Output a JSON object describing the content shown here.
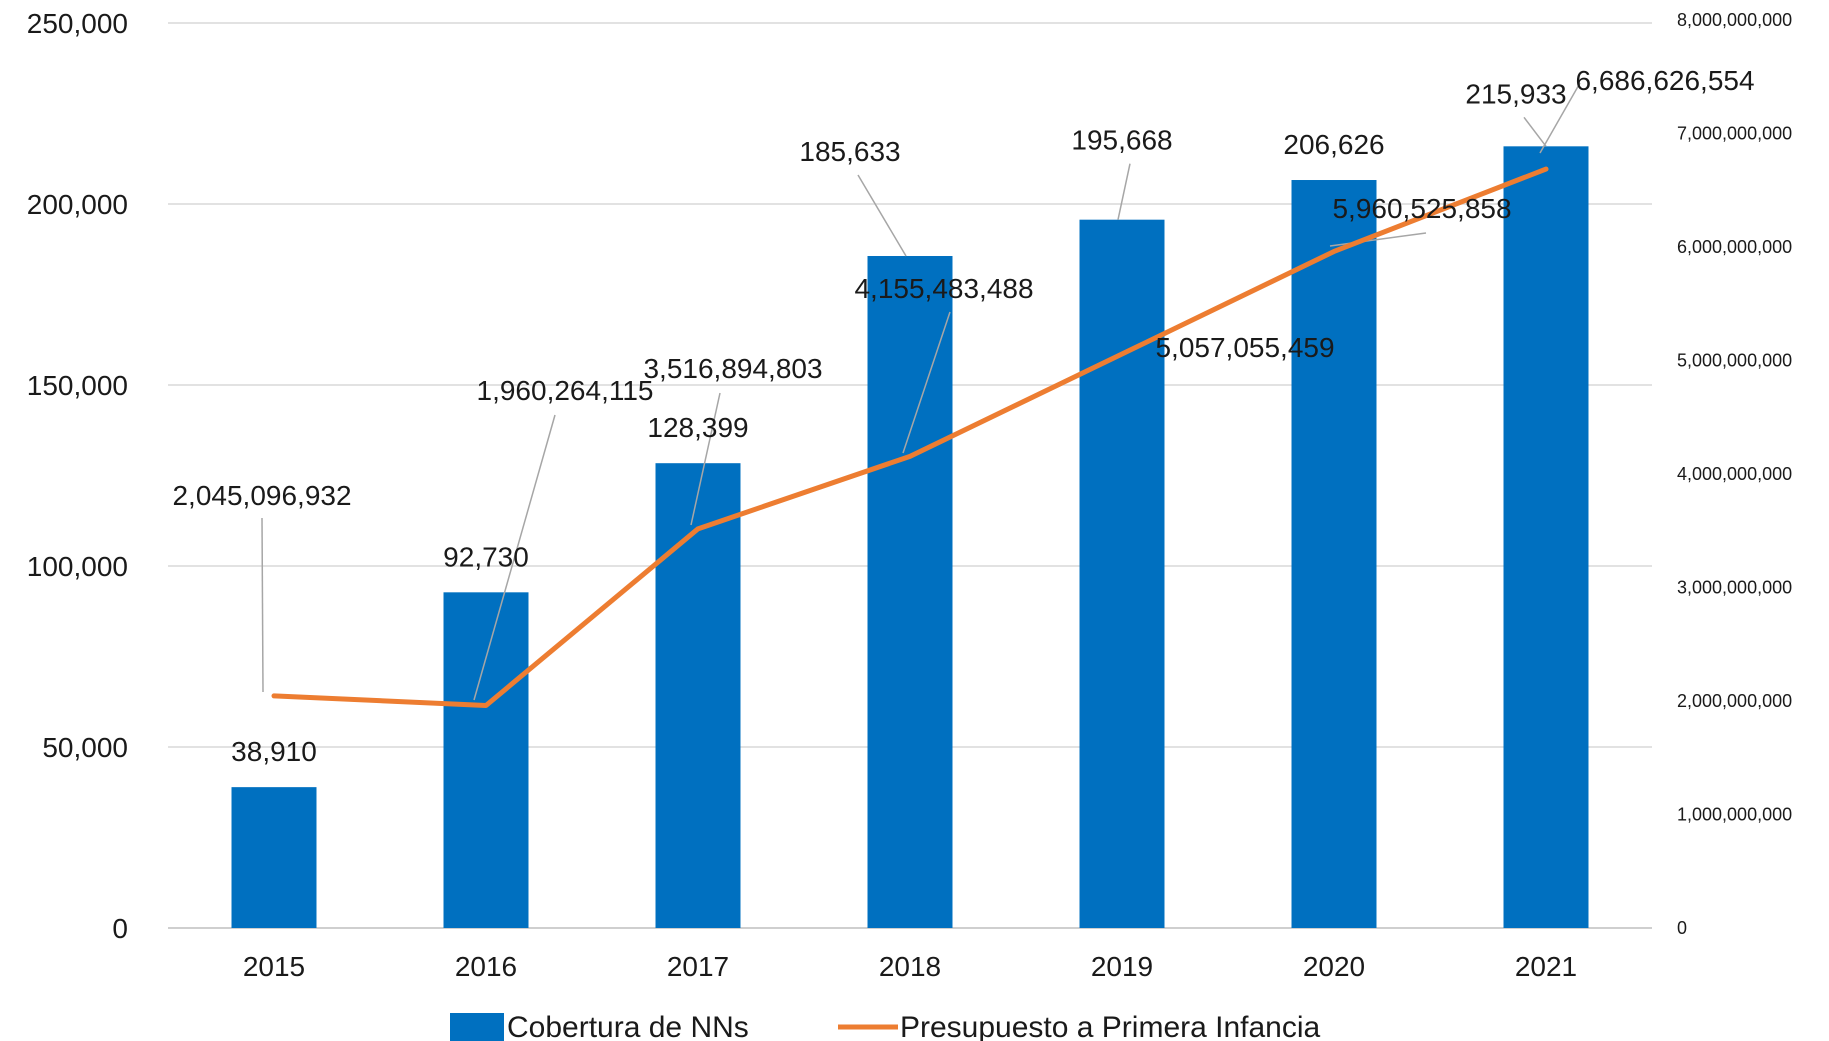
{
  "chart_data": {
    "type": "bar",
    "title": "",
    "categories": [
      "2015",
      "2016",
      "2017",
      "2018",
      "2019",
      "2020",
      "2021"
    ],
    "series": [
      {
        "name": "Cobertura de NNs",
        "type": "bar",
        "axis": "left",
        "color": "#0070C0",
        "values": [
          38910,
          92730,
          128399,
          185633,
          195668,
          206626,
          215933
        ],
        "labels": [
          "38,910",
          "92,730",
          "128,399",
          "185,633",
          "195,668",
          "206,626",
          "215,933"
        ]
      },
      {
        "name": "Presupuesto a Primera Infancia",
        "type": "line",
        "axis": "right",
        "color": "#ED7D31",
        "values": [
          2045096932,
          1960264115,
          3516894803,
          4155483488,
          5057055459,
          5960525858,
          6686626554
        ],
        "labels": [
          "2,045,096,932",
          "1,960,264,115",
          "3,516,894,803",
          "4,155,483,488",
          "5,057,055,459",
          "5,960,525,858",
          "6,686,626,554"
        ]
      }
    ],
    "y_left": {
      "ylim": [
        0,
        250000
      ],
      "ticks": [
        0,
        50000,
        100000,
        150000,
        200000,
        250000
      ],
      "tick_labels": [
        "0",
        "50,000",
        "100,000",
        "150,000",
        "200,000",
        "250,000"
      ]
    },
    "y_right": {
      "ylim": [
        0,
        8000000000
      ],
      "ticks": [
        0,
        1000000000,
        2000000000,
        3000000000,
        4000000000,
        5000000000,
        6000000000,
        7000000000,
        8000000000
      ],
      "tick_labels": [
        "0",
        "1,000,000,000",
        "2,000,000,000",
        "3,000,000,000",
        "4,000,000,000",
        "5,000,000,000",
        "6,000,000,000",
        "7,000,000,000",
        "8,000,000,000"
      ]
    },
    "grid": true,
    "legend": "bottom"
  }
}
